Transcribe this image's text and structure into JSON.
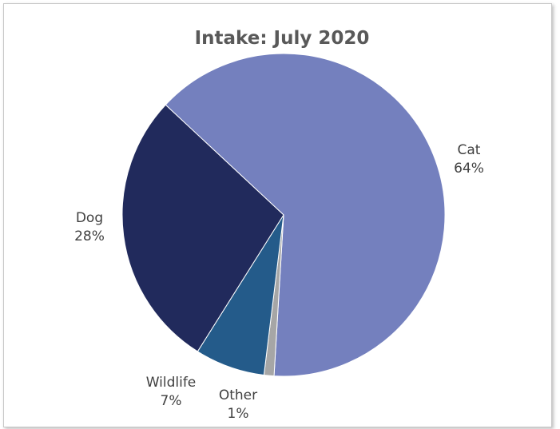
{
  "chart_data": {
    "type": "pie",
    "title": "Intake: July 2020",
    "slices": [
      {
        "label": "Cat",
        "value": 64,
        "percent_label": "64%",
        "color": "#7480be"
      },
      {
        "label": "Other",
        "value": 1,
        "percent_label": "1%",
        "color": "#a6a6a6"
      },
      {
        "label": "Wildlife",
        "value": 7,
        "percent_label": "7%",
        "color": "#245b8a"
      },
      {
        "label": "Dog",
        "value": 28,
        "percent_label": "28%",
        "color": "#212a5c"
      }
    ],
    "legend": "none",
    "data_labels": "category and percent, outside end"
  }
}
